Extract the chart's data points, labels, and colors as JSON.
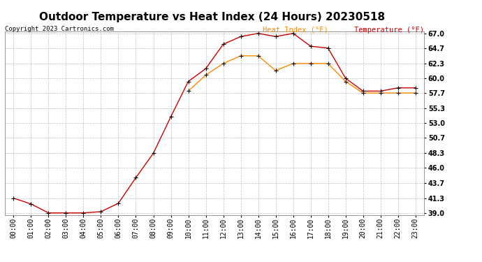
{
  "title": "Outdoor Temperature vs Heat Index (24 Hours) 20230518",
  "copyright": "Copyright 2023 Cartronics.com",
  "legend_heat": "Heat Index (°F)",
  "legend_temp": "Temperature (°F)",
  "hours": [
    "00:00",
    "01:00",
    "02:00",
    "03:00",
    "04:00",
    "05:00",
    "06:00",
    "07:00",
    "08:00",
    "09:00",
    "10:00",
    "11:00",
    "12:00",
    "13:00",
    "14:00",
    "15:00",
    "16:00",
    "17:00",
    "18:00",
    "19:00",
    "20:00",
    "21:00",
    "22:00",
    "23:00"
  ],
  "temperature": [
    41.3,
    40.4,
    39.0,
    39.0,
    39.0,
    39.2,
    40.5,
    44.5,
    48.3,
    54.0,
    59.5,
    61.5,
    65.3,
    66.5,
    67.0,
    66.5,
    67.0,
    65.0,
    64.7,
    60.0,
    58.0,
    58.0,
    58.5,
    58.5
  ],
  "heat_index": [
    null,
    null,
    null,
    null,
    null,
    null,
    null,
    null,
    null,
    null,
    58.0,
    60.5,
    62.3,
    63.5,
    63.5,
    61.2,
    62.3,
    62.3,
    62.3,
    59.5,
    57.7,
    57.7,
    57.7,
    57.7
  ],
  "temp_color": "#cc0000",
  "heat_color": "#ff8800",
  "marker_color": "#000000",
  "bg_color": "#ffffff",
  "grid_color": "#b0b0b0",
  "ylim_min": 39.0,
  "ylim_max": 67.0,
  "yticks": [
    39.0,
    41.3,
    43.7,
    46.0,
    48.3,
    50.7,
    53.0,
    55.3,
    57.7,
    60.0,
    62.3,
    64.7,
    67.0
  ],
  "title_fontsize": 11,
  "legend_fontsize": 7.5,
  "tick_fontsize": 7,
  "copyright_fontsize": 6.5
}
